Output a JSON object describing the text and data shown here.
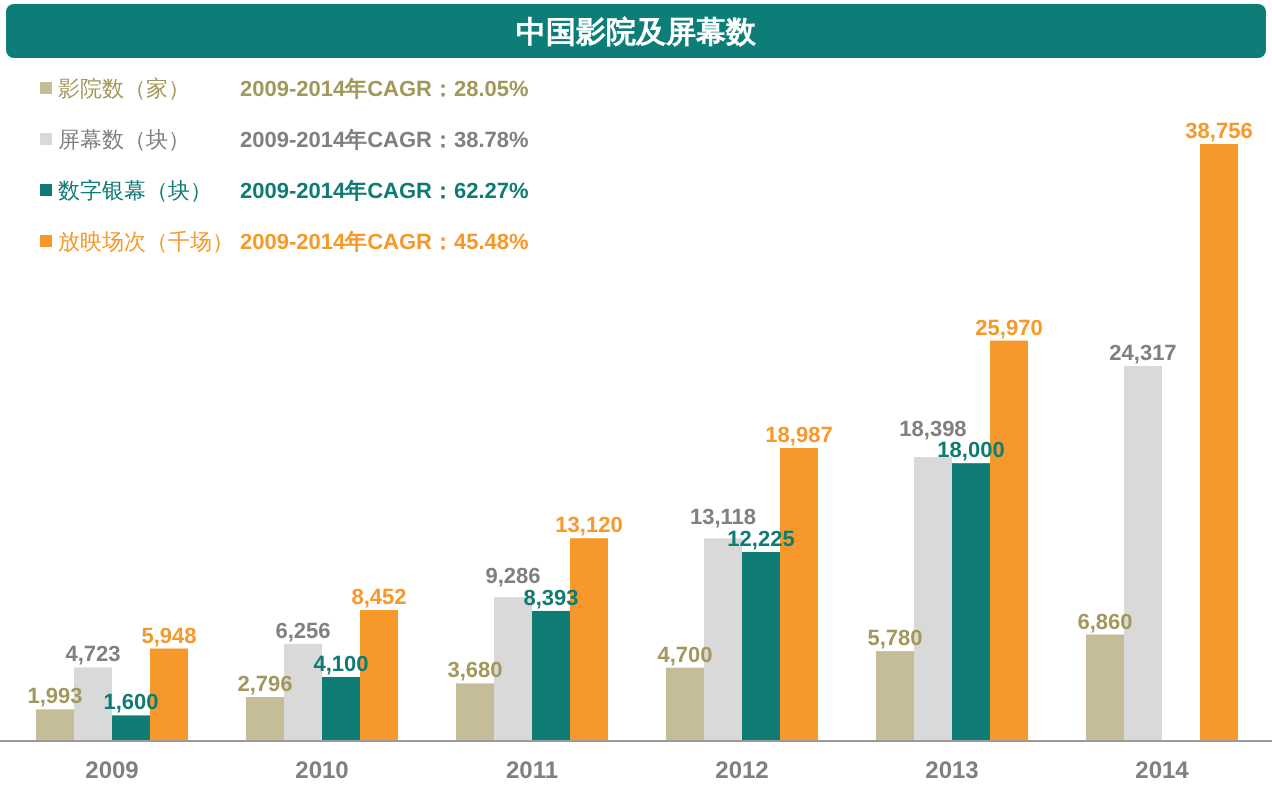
{
  "chart_data": {
    "type": "bar",
    "title": "中国影院及屏幕数",
    "categories": [
      "2009",
      "2010",
      "2011",
      "2012",
      "2013",
      "2014"
    ],
    "series": [
      {
        "name": "影院数（家）",
        "color": "#c4bd97",
        "values": [
          1993,
          2796,
          3680,
          4700,
          5780,
          6860
        ],
        "value_labels": [
          "1,993",
          "2,796",
          "3,680",
          "4,700",
          "5,780",
          "6,860"
        ]
      },
      {
        "name": "屏幕数（块）",
        "color": "#d9d9d9",
        "values": [
          4723,
          6256,
          9286,
          13118,
          18398,
          24317
        ],
        "value_labels": [
          "4,723",
          "6,256",
          "9,286",
          "13,118",
          "18,398",
          "24,317"
        ]
      },
      {
        "name": "数字银幕（块）",
        "color": "#0e7c74",
        "values": [
          1600,
          4100,
          8393,
          12225,
          18000,
          null
        ],
        "value_labels": [
          "1,600",
          "4,100",
          "8,393",
          "12,225",
          "18,000",
          null
        ]
      },
      {
        "name": "放映场次（千场）",
        "color": "#f7992a",
        "values": [
          5948,
          8452,
          13120,
          18987,
          25970,
          38756
        ],
        "value_labels": [
          "5,948",
          "8,452",
          "13,120",
          "18,987",
          "25,970",
          "38,756"
        ]
      }
    ],
    "annotations": [
      "2009-2014年CAGR：28.05%",
      "2009-2014年CAGR：38.78%",
      "2009-2014年CAGR：62.27%",
      "2009-2014年CAGR：45.48%"
    ],
    "legend": "top left",
    "tick_labels": "x"
  }
}
